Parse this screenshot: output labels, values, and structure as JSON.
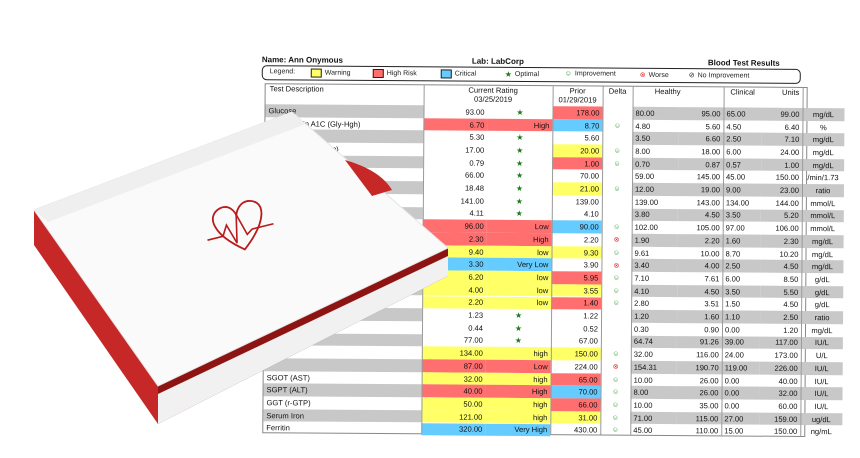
{
  "header": {
    "name_label": "Name:",
    "name_value": "Ann  Onymous",
    "lab_label": "Lab:",
    "lab_value": "LabCorp",
    "title": "Blood Test Results"
  },
  "legend": {
    "label": "Legend:",
    "warning": "Warning",
    "high_risk": "High Risk",
    "critical": "Critical",
    "optimal": "Optimal",
    "improvement": "Improvement",
    "worse": "Worse",
    "no_improvement": "No Improvement",
    "colors": {
      "warning": "#ffff66",
      "high_risk": "#ff6f6f",
      "critical": "#66ccff",
      "optimal": "#1a7a1a",
      "improvement": "#2a9a2a",
      "worse": "#e03030"
    }
  },
  "columns": {
    "test": "Test Description",
    "current": "Current Rating",
    "current_date": "03/25/2019",
    "prior": "Prior",
    "prior_date": "01/29/2019",
    "delta": "Delta",
    "healthy": "Healthy",
    "clinical": "Clinical",
    "units": "Units"
  },
  "rows": [
    {
      "test": "Glucose",
      "cur": "93.00",
      "cur_rating": "★",
      "cur_color": "",
      "prior": "178.00",
      "prior_color": "#ff6f6f",
      "delta": "",
      "h_lo": "80.00",
      "h_hi": "95.00",
      "c_lo": "65.00",
      "c_hi": "99.00",
      "unit": "mg/dL",
      "shade": true
    },
    {
      "test": "Hemoglobin A1C (Gly-Hgh)",
      "cur": "6.70",
      "cur_rating": "High",
      "cur_color": "#ff6f6f",
      "prior": "8.70",
      "prior_color": "#66ccff",
      "delta": "☺",
      "h_lo": "4.80",
      "h_hi": "5.60",
      "c_lo": "4.50",
      "c_hi": "6.40",
      "unit": "%",
      "shade": false
    },
    {
      "test": "",
      "cur": "5.30",
      "cur_rating": "★",
      "cur_color": "",
      "prior": "5.60",
      "prior_color": "",
      "delta": "",
      "h_lo": "3.50",
      "h_hi": "6.60",
      "c_lo": "2.50",
      "c_hi": "7.10",
      "unit": "mg/dL",
      "shade": true
    },
    {
      "test": "BUN (Urea Nitrogen)",
      "cur": "17.00",
      "cur_rating": "★",
      "cur_color": "",
      "prior": "20.00",
      "prior_color": "#ffff66",
      "delta": "☺",
      "h_lo": "8.00",
      "h_hi": "18.00",
      "c_lo": "6.00",
      "c_hi": "24.00",
      "unit": "mg/dL",
      "shade": false
    },
    {
      "test": "",
      "cur": "0.79",
      "cur_rating": "★",
      "cur_color": "",
      "prior": "1.00",
      "prior_color": "#ff6f6f",
      "delta": "☺",
      "h_lo": "0.70",
      "h_hi": "0.87",
      "c_lo": "0.57",
      "c_hi": "1.00",
      "unit": "mg/dL",
      "shade": true
    },
    {
      "test": "",
      "cur": "66.00",
      "cur_rating": "★",
      "cur_color": "",
      "prior": "70.00",
      "prior_color": "",
      "delta": "",
      "h_lo": "59.00",
      "h_hi": "145.00",
      "c_lo": "45.00",
      "c_hi": "150.00",
      "unit": "/min/1.73",
      "shade": false
    },
    {
      "test": "",
      "cur": "18.48",
      "cur_rating": "★",
      "cur_color": "",
      "prior": "21.00",
      "prior_color": "#ffff66",
      "delta": "☺",
      "h_lo": "12.00",
      "h_hi": "19.00",
      "c_lo": "9.00",
      "c_hi": "23.00",
      "unit": "ratio",
      "shade": true
    },
    {
      "test": "",
      "cur": "141.00",
      "cur_rating": "★",
      "cur_color": "",
      "prior": "139.00",
      "prior_color": "",
      "delta": "",
      "h_lo": "139.00",
      "h_hi": "143.00",
      "c_lo": "134.00",
      "c_hi": "144.00",
      "unit": "mmol/L",
      "shade": false
    },
    {
      "test": "",
      "cur": "4.11",
      "cur_rating": "★",
      "cur_color": "",
      "prior": "4.10",
      "prior_color": "",
      "delta": "",
      "h_lo": "3.80",
      "h_hi": "4.50",
      "c_lo": "3.50",
      "c_hi": "5.20",
      "unit": "mmol/L",
      "shade": true
    },
    {
      "test": "",
      "cur": "96.00",
      "cur_rating": "Low",
      "cur_color": "#ff6f6f",
      "prior": "90.00",
      "prior_color": "#66ccff",
      "delta": "☺",
      "h_lo": "102.00",
      "h_hi": "105.00",
      "c_lo": "97.00",
      "c_hi": "106.00",
      "unit": "mmol/L",
      "shade": false
    },
    {
      "test": "",
      "cur": "2.30",
      "cur_rating": "High",
      "cur_color": "#ff6f6f",
      "prior": "2.20",
      "prior_color": "",
      "delta": "⊗",
      "h_lo": "1.90",
      "h_hi": "2.20",
      "c_lo": "1.60",
      "c_hi": "2.30",
      "unit": "mg/dL",
      "shade": true
    },
    {
      "test": "",
      "cur": "9.40",
      "cur_rating": "low",
      "cur_color": "#ffff66",
      "prior": "9.30",
      "prior_color": "#ffff66",
      "delta": "☺",
      "h_lo": "9.61",
      "h_hi": "10.00",
      "c_lo": "8.70",
      "c_hi": "10.20",
      "unit": "mg/dL",
      "shade": false
    },
    {
      "test": "",
      "cur": "3.30",
      "cur_rating": "Very Low",
      "cur_color": "#66ccff",
      "prior": "3.90",
      "prior_color": "",
      "delta": "⊗",
      "h_lo": "3.40",
      "h_hi": "4.00",
      "c_lo": "2.50",
      "c_hi": "4.50",
      "unit": "mg/dL",
      "shade": true
    },
    {
      "test": "",
      "cur": "6.20",
      "cur_rating": "low",
      "cur_color": "#ffff66",
      "prior": "5.95",
      "prior_color": "#ff6f6f",
      "delta": "☺",
      "h_lo": "7.10",
      "h_hi": "7.61",
      "c_lo": "6.00",
      "c_hi": "8.50",
      "unit": "g/dL",
      "shade": false
    },
    {
      "test": "",
      "cur": "4.00",
      "cur_rating": "low",
      "cur_color": "#ffff66",
      "prior": "3.55",
      "prior_color": "#ffff66",
      "delta": "☺",
      "h_lo": "4.10",
      "h_hi": "4.50",
      "c_lo": "3.50",
      "c_hi": "5.50",
      "unit": "g/dL",
      "shade": true
    },
    {
      "test": "",
      "cur": "2.20",
      "cur_rating": "low",
      "cur_color": "#ffff66",
      "prior": "1.40",
      "prior_color": "#ff6f6f",
      "delta": "☺",
      "h_lo": "2.80",
      "h_hi": "3.51",
      "c_lo": "1.50",
      "c_hi": "4.50",
      "unit": "g/dL",
      "shade": false
    },
    {
      "test": "",
      "cur": "1.23",
      "cur_rating": "★",
      "cur_color": "",
      "prior": "1.22",
      "prior_color": "",
      "delta": "",
      "h_lo": "1.20",
      "h_hi": "1.60",
      "c_lo": "1.10",
      "c_hi": "2.50",
      "unit": "ratio",
      "shade": true
    },
    {
      "test": "",
      "cur": "0.44",
      "cur_rating": "★",
      "cur_color": "",
      "prior": "0.52",
      "prior_color": "",
      "delta": "",
      "h_lo": "0.30",
      "h_hi": "0.90",
      "c_lo": "0.00",
      "c_hi": "1.20",
      "unit": "mg/dL",
      "shade": false
    },
    {
      "test": "",
      "cur": "77.00",
      "cur_rating": "★",
      "cur_color": "",
      "prior": "67.00",
      "prior_color": "",
      "delta": "",
      "h_lo": "64.74",
      "h_hi": "91.26",
      "c_lo": "39.00",
      "c_hi": "117.00",
      "unit": "IU/L",
      "shade": true
    },
    {
      "test": "",
      "cur": "134.00",
      "cur_rating": "high",
      "cur_color": "#ffff66",
      "prior": "150.00",
      "prior_color": "#ffff66",
      "delta": "☺",
      "h_lo": "32.00",
      "h_hi": "116.00",
      "c_lo": "24.00",
      "c_hi": "173.00",
      "unit": "U/L",
      "shade": false
    },
    {
      "test": "",
      "cur": "87.00",
      "cur_rating": "Low",
      "cur_color": "#ff6f6f",
      "prior": "224.00",
      "prior_color": "",
      "delta": "⊗",
      "h_lo": "154.31",
      "h_hi": "190.70",
      "c_lo": "119.00",
      "c_hi": "226.00",
      "unit": "IU/L",
      "shade": true
    },
    {
      "test": "SGOT (AST)",
      "cur": "32.00",
      "cur_rating": "high",
      "cur_color": "#ffff66",
      "prior": "65.00",
      "prior_color": "#ff6f6f",
      "delta": "☺",
      "h_lo": "10.00",
      "h_hi": "26.00",
      "c_lo": "0.00",
      "c_hi": "40.00",
      "unit": "IU/L",
      "shade": false
    },
    {
      "test": "SGPT (ALT)",
      "cur": "40.00",
      "cur_rating": "High",
      "cur_color": "#ff6f6f",
      "prior": "70.00",
      "prior_color": "#66ccff",
      "delta": "☺",
      "h_lo": "8.00",
      "h_hi": "26.00",
      "c_lo": "0.00",
      "c_hi": "32.00",
      "unit": "IU/L",
      "shade": true
    },
    {
      "test": "GGT (r-GTP)",
      "cur": "50.00",
      "cur_rating": "high",
      "cur_color": "#ffff66",
      "prior": "66.00",
      "prior_color": "#ff6f6f",
      "delta": "☺",
      "h_lo": "10.00",
      "h_hi": "35.00",
      "c_lo": "0.00",
      "c_hi": "60.00",
      "unit": "IU/L",
      "shade": false
    },
    {
      "test": "Serum Iron",
      "cur": "121.00",
      "cur_rating": "high",
      "cur_color": "#ffff66",
      "prior": "31.00",
      "prior_color": "#ffff66",
      "delta": "☺",
      "h_lo": "71.00",
      "h_hi": "115.00",
      "c_lo": "27.00",
      "c_hi": "159.00",
      "unit": "ug/dL",
      "shade": true
    },
    {
      "test": "Ferritin",
      "cur": "320.00",
      "cur_rating": "Very High",
      "cur_color": "#66ccff",
      "prior": "430.00",
      "prior_color": "",
      "delta": "☺",
      "h_lo": "45.00",
      "h_hi": "110.00",
      "c_lo": "15.00",
      "c_hi": "150.00",
      "unit": "ng/mL",
      "shade": false
    }
  ],
  "box": {
    "accent": "#b71c1c",
    "icon": "heart-ecg-icon"
  }
}
